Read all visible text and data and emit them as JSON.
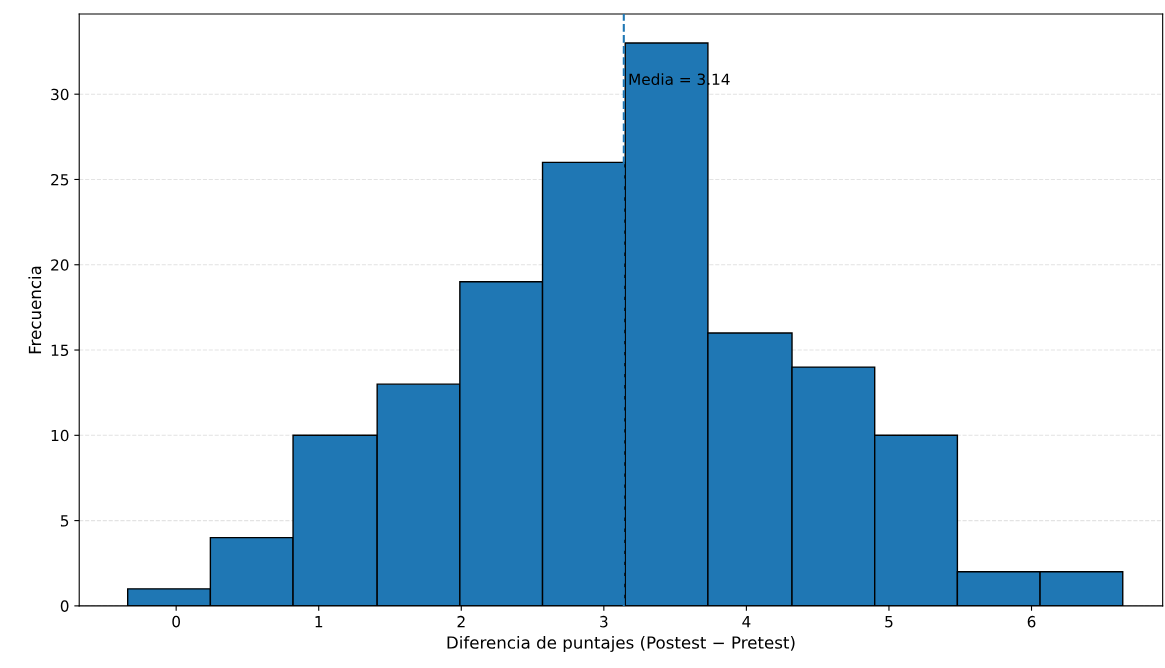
{
  "chart_data": {
    "type": "histogram",
    "xlabel": "Diferencia de puntajes (Postest − Pretest)",
    "ylabel": "Frecuencia",
    "bins": [
      -0.34,
      0.24,
      0.82,
      1.41,
      1.99,
      2.57,
      3.15,
      3.73,
      4.32,
      4.9,
      5.48,
      6.06,
      6.64
    ],
    "values": [
      1,
      4,
      10,
      13,
      19,
      26,
      33,
      16,
      14,
      10,
      2,
      2
    ],
    "color": "#1f77b4",
    "xlim": [
      -0.68,
      6.92
    ],
    "ylim": [
      0,
      34.7
    ],
    "xticks": [
      0,
      1,
      2,
      3,
      4,
      5,
      6
    ],
    "yticks": [
      0,
      5,
      10,
      15,
      20,
      25,
      30
    ],
    "grid": "y",
    "ref_lines": [
      {
        "axis": "x",
        "value": 3.14,
        "label": "Media = 3.14",
        "color": "#1f77b4",
        "line_style": "dashed"
      }
    ]
  }
}
